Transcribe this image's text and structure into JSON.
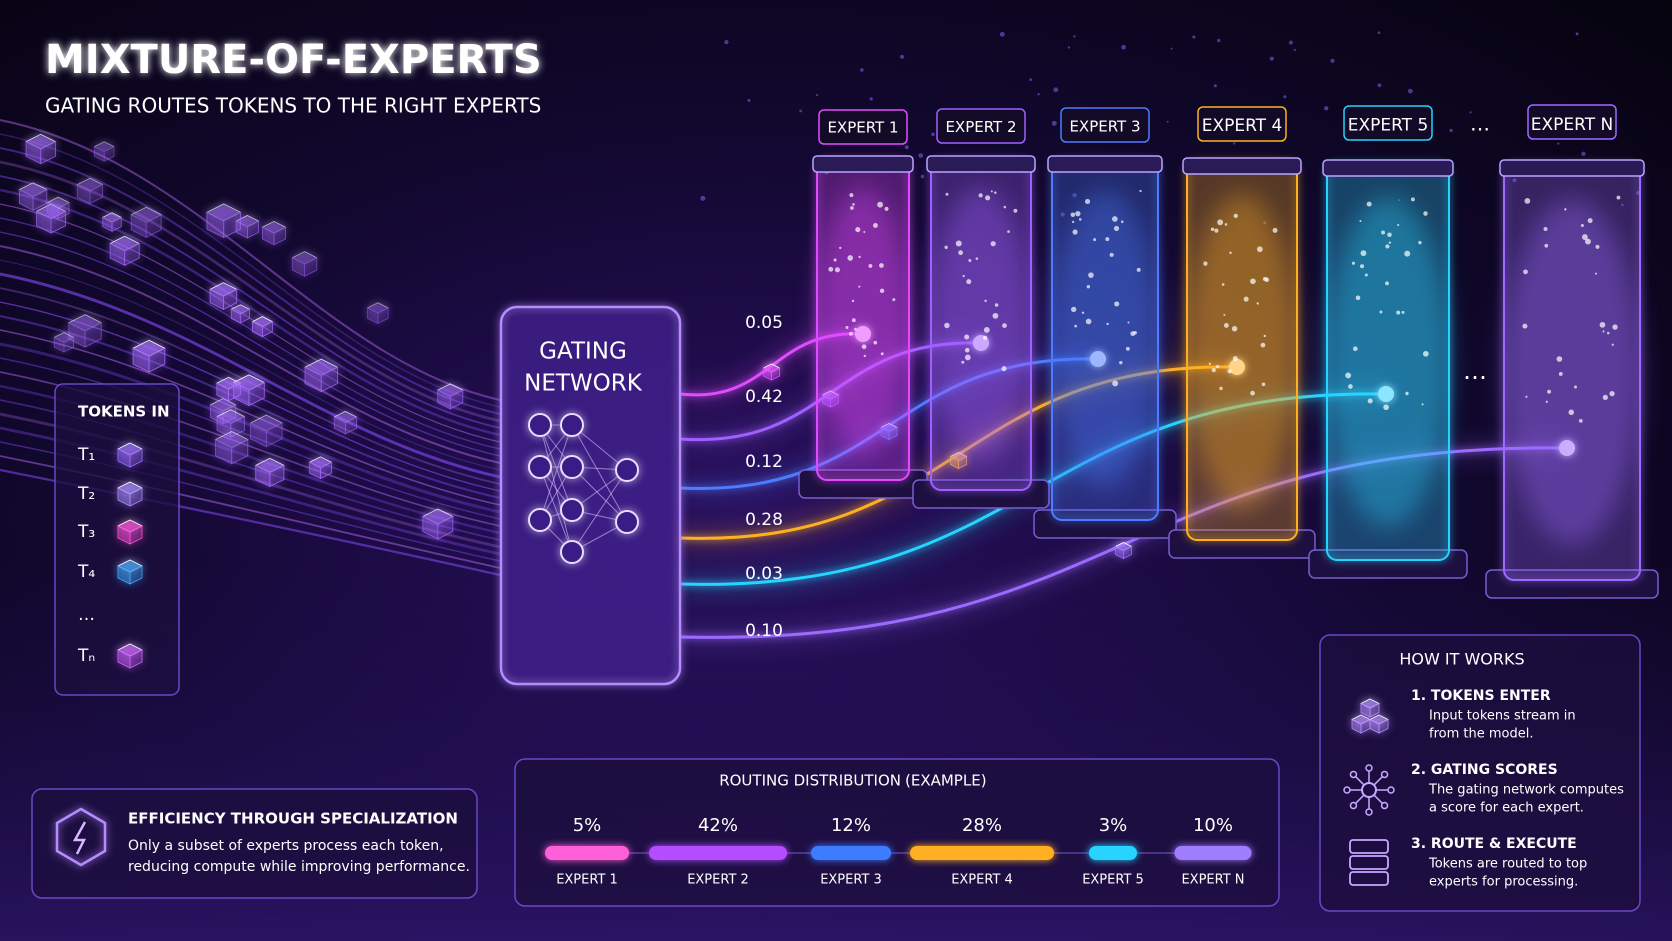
{
  "header": {
    "title": "MIXTURE-OF-EXPERTS",
    "subtitle": "GATING ROUTES TOKENS TO THE RIGHT EXPERTS"
  },
  "tokens": {
    "title": "TOKENS IN",
    "items": [
      "T₁",
      "T₂",
      "T₃",
      "T₄",
      "…",
      "Tₙ"
    ]
  },
  "gating": {
    "lines": [
      "GATING",
      "NETWORK"
    ]
  },
  "experts": {
    "labels": [
      "EXPERT 1",
      "EXPERT 2",
      "EXPERT 3",
      "EXPERT 4",
      "EXPERT 5",
      "EXPERT N"
    ],
    "ellipsis": "…",
    "side_ellipsis": "…"
  },
  "scores": [
    "0.05",
    "0.42",
    "0.12",
    "0.28",
    "0.03",
    "0.10"
  ],
  "efficiency": {
    "title": "EFFICIENCY THROUGH SPECIALIZATION",
    "lines": [
      "Only a subset of experts process each token,",
      "reducing compute while improving performance."
    ]
  },
  "routing": {
    "title": "ROUTING DISTRIBUTION",
    "note": "(EXAMPLE)",
    "items": [
      {
        "percent": "5%",
        "expert": "EXPERT 1"
      },
      {
        "percent": "42%",
        "expert": "EXPERT 2"
      },
      {
        "percent": "12%",
        "expert": "EXPERT 3"
      },
      {
        "percent": "28%",
        "expert": "EXPERT 4"
      },
      {
        "percent": "3%",
        "expert": "EXPERT 5"
      },
      {
        "percent": "10%",
        "expert": "EXPERT N"
      }
    ]
  },
  "how": {
    "title": "HOW IT WORKS",
    "steps": [
      {
        "title": "1. TOKENS ENTER",
        "lines": [
          "Input tokens stream in",
          "from the model."
        ]
      },
      {
        "title": "2. GATING SCORES",
        "lines": [
          "The gating network computes",
          "a score for each expert."
        ]
      },
      {
        "title": "3. ROUTE & EXECUTE",
        "lines": [
          "Tokens are routed to top",
          "experts for processing."
        ]
      }
    ]
  }
}
